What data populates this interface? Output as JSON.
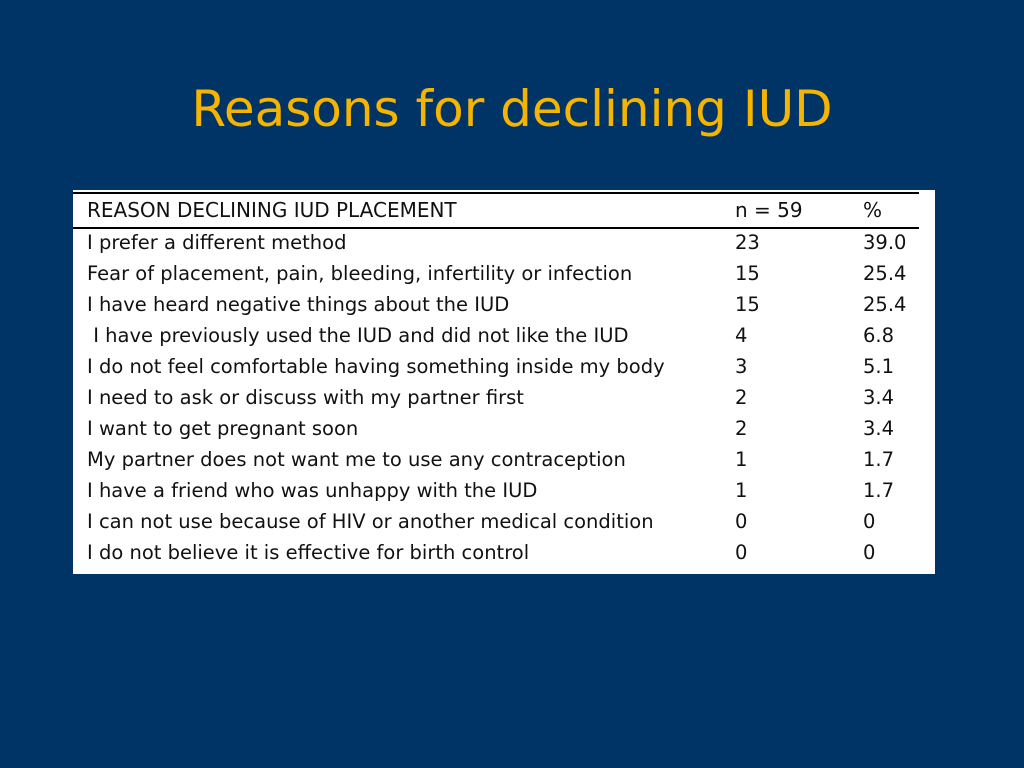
{
  "slide": {
    "title": "Reasons for declining IUD"
  },
  "table": {
    "headers": {
      "reason": "REASON DECLINING IUD PLACEMENT",
      "n": "n = 59",
      "pct": "%"
    },
    "rows": [
      {
        "reason": "I prefer a different method",
        "n": "23",
        "pct": "39.0"
      },
      {
        "reason": "Fear of placement, pain, bleeding, infertility or infection",
        "n": "15",
        "pct": "25.4"
      },
      {
        "reason": "I have heard negative things about the IUD",
        "n": "15",
        "pct": "25.4"
      },
      {
        "reason": " I have previously used the IUD and did not like the IUD",
        "n": "4",
        "pct": "6.8"
      },
      {
        "reason": "I do not feel comfortable having something inside my body",
        "n": "3",
        "pct": "5.1"
      },
      {
        "reason": "I need to ask or discuss with my partner first",
        "n": "2",
        "pct": "3.4"
      },
      {
        "reason": "I want to get pregnant soon",
        "n": "2",
        "pct": "3.4"
      },
      {
        "reason": "My partner does not want me to use any contraception",
        "n": "1",
        "pct": "1.7"
      },
      {
        "reason": "I have a friend who was unhappy with the IUD",
        "n": "1",
        "pct": "1.7"
      },
      {
        "reason": "I can not use because of HIV or another medical condition",
        "n": "0",
        "pct": "0"
      },
      {
        "reason": "I do not believe it is effective for birth control",
        "n": "0",
        "pct": "0"
      }
    ]
  },
  "colors": {
    "background": "#003366",
    "title": "#f5b400",
    "table_background": "#ffffff",
    "text": "#111111"
  }
}
